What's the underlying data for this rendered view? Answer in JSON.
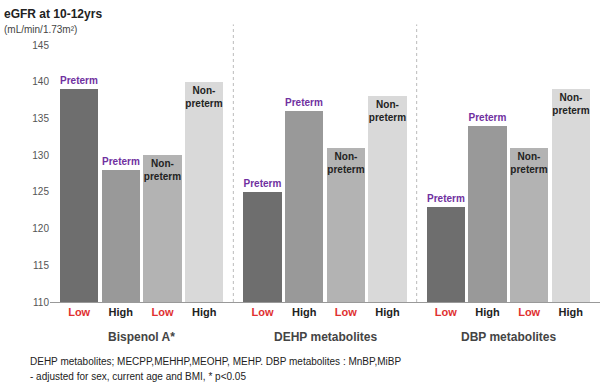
{
  "chart_data": {
    "type": "bar",
    "y_title": "eGFR at 10-12yrs",
    "y_unit": "(mL/min/1.73m²)",
    "categories": [
      "Bispenol A*",
      "DEHP metabolites",
      "DBP metabolites"
    ],
    "series": [
      {
        "name": "Preterm",
        "level": "Low",
        "color": "#6e6e6e",
        "values": [
          139,
          125,
          123
        ]
      },
      {
        "name": "Preterm",
        "level": "High",
        "color": "#999999",
        "values": [
          128,
          136,
          134
        ]
      },
      {
        "name": "Non-preterm",
        "level": "Low",
        "color": "#b3b3b3",
        "values": [
          130,
          131,
          131
        ]
      },
      {
        "name": "Non-preterm",
        "level": "High",
        "color": "#d9d9d9",
        "values": [
          140,
          138,
          139
        ]
      }
    ],
    "ylim": [
      110,
      145
    ],
    "yticks": [
      110,
      115,
      120,
      125,
      130,
      135,
      140,
      145
    ],
    "grid": false,
    "footnotes": [
      "DEHP metabolites; MECPP,MEHHP,MEOHP, MEHP. DBP metabolites : MnBP,MiBP",
      "- adjusted for sex, current age and BMI, * p<0.05"
    ]
  }
}
